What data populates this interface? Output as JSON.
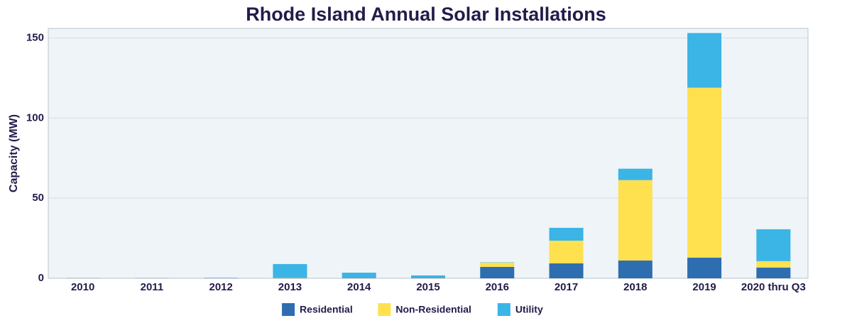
{
  "chart_data": {
    "type": "stacked_bar",
    "title": "Rhode Island Annual Solar Installations",
    "y_label": "Capacity (MW)",
    "categories": [
      "2010",
      "2011",
      "2012",
      "2013",
      "2014",
      "2015",
      "2016",
      "2017",
      "2018",
      "2019",
      "2020 thru Q3"
    ],
    "series": [
      {
        "name": "Residential",
        "color": "#2e6db0",
        "values": [
          0.1,
          0.1,
          0.2,
          0.3,
          0.3,
          0.3,
          7.1,
          9.3,
          11.1,
          12.9,
          6.7
        ]
      },
      {
        "name": "Non-Residential",
        "color": "#ffe04f",
        "values": [
          0,
          0,
          0,
          0.2,
          0.1,
          0.1,
          2.7,
          14.2,
          50.2,
          106.1,
          4
        ]
      },
      {
        "name": "Utility",
        "color": "#3bb4e6",
        "values": [
          0,
          0,
          0,
          8.4,
          3.1,
          1.4,
          0.2,
          8,
          7.1,
          34.1,
          19.9
        ]
      }
    ],
    "ylim": [
      0,
      156
    ],
    "yticks": [
      0,
      50,
      100,
      150
    ],
    "grid": true,
    "legend": "bottom"
  }
}
